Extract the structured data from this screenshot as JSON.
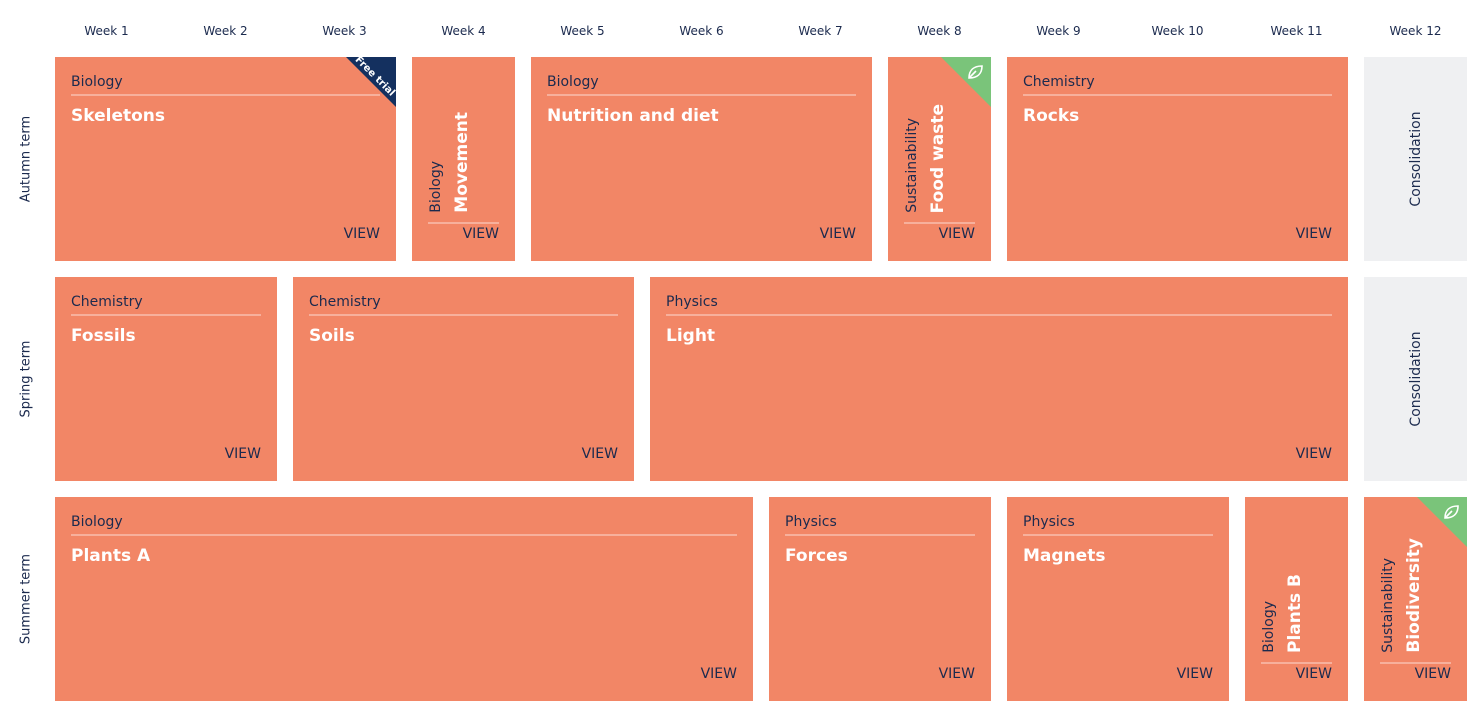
{
  "weeks": [
    "Week 1",
    "Week 2",
    "Week 3",
    "Week 4",
    "Week 5",
    "Week 6",
    "Week 7",
    "Week 8",
    "Week 9",
    "Week 10",
    "Week 11",
    "Week 12"
  ],
  "terms": [
    {
      "name": "Autumn term",
      "units": [
        {
          "subject": "Biology",
          "title": "Skeletons",
          "link": "VIEW",
          "badge": "Free trial"
        },
        {
          "subject": "Biology",
          "title": "Movement",
          "link": "VIEW"
        },
        {
          "subject": "Biology",
          "title": "Nutrition and diet",
          "link": "VIEW"
        },
        {
          "subject": "Sustainability",
          "title": "Food waste",
          "link": "VIEW"
        },
        {
          "subject": "Chemistry",
          "title": "Rocks",
          "link": "VIEW"
        },
        {
          "title": "Consolidation"
        }
      ]
    },
    {
      "name": "Spring term",
      "units": [
        {
          "subject": "Chemistry",
          "title": "Fossils",
          "link": "VIEW"
        },
        {
          "subject": "Chemistry",
          "title": "Soils",
          "link": "VIEW"
        },
        {
          "subject": "Physics",
          "title": "Light",
          "link": "VIEW"
        },
        {
          "title": "Consolidation"
        }
      ]
    },
    {
      "name": "Summer term",
      "units": [
        {
          "subject": "Biology",
          "title": "Plants A",
          "link": "VIEW"
        },
        {
          "subject": "Physics",
          "title": "Forces",
          "link": "VIEW"
        },
        {
          "subject": "Physics",
          "title": "Magnets",
          "link": "VIEW"
        },
        {
          "subject": "Biology",
          "title": "Plants B",
          "link": "VIEW"
        },
        {
          "subject": "Sustainability",
          "title": "Biodiversity",
          "link": "VIEW"
        }
      ]
    }
  ]
}
